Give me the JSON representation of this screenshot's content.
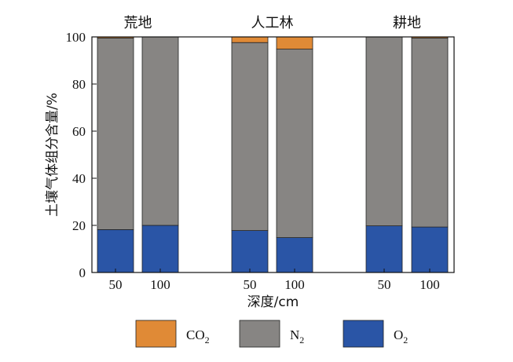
{
  "chart_data": {
    "type": "bar",
    "stacked": true,
    "groups": [
      "荒地",
      "人工林",
      "耕地"
    ],
    "categories": [
      "50",
      "100",
      "50",
      "100",
      "50",
      "100"
    ],
    "category_group": [
      0,
      0,
      1,
      1,
      2,
      2
    ],
    "series": [
      {
        "name": "O2",
        "label_main": "O",
        "label_sub": "2",
        "color": "#2a55a6",
        "values": [
          18.2,
          20.0,
          17.8,
          14.8,
          19.8,
          19.3
        ]
      },
      {
        "name": "N2",
        "label_main": "N",
        "label_sub": "2",
        "color": "#878583",
        "values": [
          81.3,
          80.0,
          79.8,
          80.0,
          80.2,
          80.2
        ]
      },
      {
        "name": "CO2",
        "label_main": "CO",
        "label_sub": "2",
        "color": "#e08a36",
        "values": [
          0.5,
          0.0,
          2.4,
          5.2,
          0.0,
          0.5
        ]
      }
    ],
    "xlabel": "深度/cm",
    "ylabel": "土壤气体组分含量/%",
    "ylim": [
      0,
      100
    ],
    "yticks": [
      0,
      20,
      40,
      60,
      80,
      100
    ],
    "legend_position": "bottom",
    "grid": false
  }
}
